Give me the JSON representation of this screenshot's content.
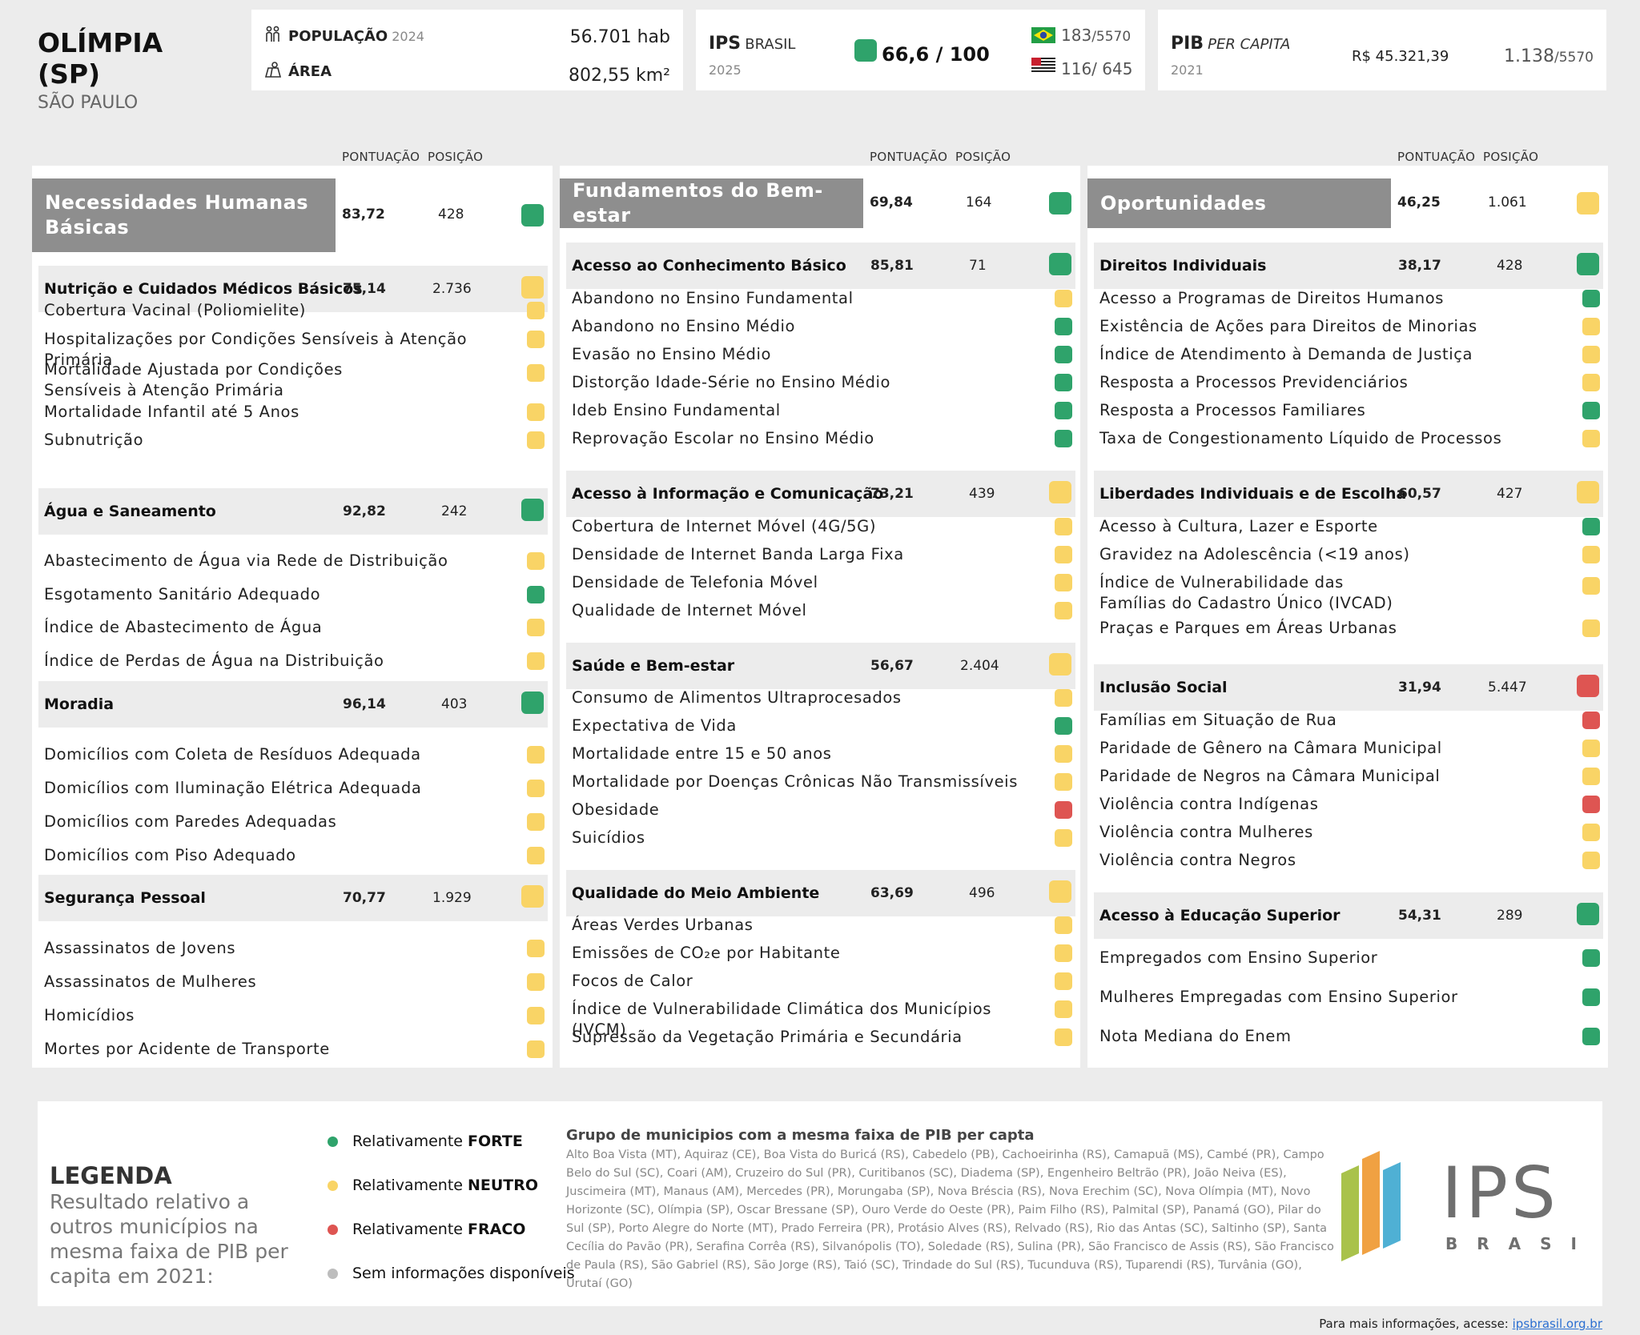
{
  "header": {
    "city_name": "OLÍMPIA (SP)",
    "state": "SÃO PAULO",
    "population_label": "POPULAÇÃO",
    "population_year": "2024",
    "population_value": "56.701 hab",
    "area_label": "ÁREA",
    "area_value": "802,55 km²",
    "ips_label": "IPS",
    "ips_sub": "BRASIL",
    "ips_year": "2025",
    "ips_score": "66,6 / 100",
    "ips_status": "g",
    "rank_brazil": "183",
    "rank_brazil_total": "/5570",
    "rank_state": "116/ 645",
    "pib_label": "PIB",
    "pib_sub": "PER CAPITA",
    "pib_year": "2021",
    "pib_value": "R$ 45.321,39",
    "pib_rank": "1.138",
    "pib_rank_total": "/5570"
  },
  "columns": {
    "score": "PONTUAÇÃO",
    "position": "POSIÇÃO"
  },
  "panels": [
    {
      "title": "Necessidades Humanas Básicas",
      "score": "83,72",
      "position": "428",
      "status": "g",
      "components": [
        {
          "label": "Nutrição e Cuidados Médicos Básicos",
          "score": "75,14",
          "position": "2.736",
          "status": "y",
          "indicators": [
            {
              "label": "Cobertura Vacinal (Poliomielite)",
              "status": "y"
            },
            {
              "label": "Hospitalizações por Condições Sensíveis à Atenção Primária",
              "status": "y"
            },
            {
              "label": "Mortalidade Ajustada por Condições Sensíveis à Atenção Primária",
              "status": "y"
            },
            {
              "label": "Mortalidade Infantil até 5 Anos",
              "status": "y"
            },
            {
              "label": "Subnutrição",
              "status": "y"
            }
          ]
        },
        {
          "label": "Água e Saneamento",
          "score": "92,82",
          "position": "242",
          "status": "g",
          "indicators": [
            {
              "label": "Abastecimento de Água via Rede de Distribuição",
              "status": "y"
            },
            {
              "label": "Esgotamento Sanitário Adequado",
              "status": "g"
            },
            {
              "label": "Índice de Abastecimento de Água",
              "status": "y"
            },
            {
              "label": "Índice de Perdas de Água na Distribuição",
              "status": "y"
            }
          ]
        },
        {
          "label": "Moradia",
          "score": "96,14",
          "position": "403",
          "status": "g",
          "indicators": [
            {
              "label": "Domicílios com Coleta de Resíduos Adequada",
              "status": "y"
            },
            {
              "label": "Domicílios com Iluminação Elétrica Adequada",
              "status": "y"
            },
            {
              "label": "Domicílios com Paredes Adequadas",
              "status": "y"
            },
            {
              "label": "Domicílios com Piso Adequado",
              "status": "y"
            }
          ]
        },
        {
          "label": "Segurança Pessoal",
          "score": "70,77",
          "position": "1.929",
          "status": "y",
          "indicators": [
            {
              "label": "Assassinatos de Jovens",
              "status": "y"
            },
            {
              "label": "Assassinatos de Mulheres",
              "status": "y"
            },
            {
              "label": "Homicídios",
              "status": "y"
            },
            {
              "label": "Mortes por Acidente de Transporte",
              "status": "y"
            }
          ]
        }
      ]
    },
    {
      "title": "Fundamentos do Bem-estar",
      "score": "69,84",
      "position": "164",
      "status": "g",
      "components": [
        {
          "label": "Acesso ao Conhecimento Básico",
          "score": "85,81",
          "position": "71",
          "status": "g",
          "indicators": [
            {
              "label": "Abandono no Ensino Fundamental",
              "status": "y"
            },
            {
              "label": "Abandono no Ensino Médio",
              "status": "g"
            },
            {
              "label": "Evasão no Ensino Médio",
              "status": "g"
            },
            {
              "label": "Distorção Idade-Série no Ensino Médio",
              "status": "g"
            },
            {
              "label": "Ideb Ensino Fundamental",
              "status": "g"
            },
            {
              "label": "Reprovação Escolar no Ensino Médio",
              "status": "g"
            }
          ]
        },
        {
          "label": "Acesso à Informação e Comunicação",
          "score": "73,21",
          "position": "439",
          "status": "y",
          "indicators": [
            {
              "label": "Cobertura de Internet Móvel (4G/5G)",
              "status": "y"
            },
            {
              "label": "Densidade de Internet Banda Larga Fixa",
              "status": "y"
            },
            {
              "label": "Densidade de Telefonia Móvel",
              "status": "y"
            },
            {
              "label": "Qualidade de Internet Móvel",
              "status": "y"
            }
          ]
        },
        {
          "label": "Saúde e Bem-estar",
          "score": "56,67",
          "position": "2.404",
          "status": "y",
          "indicators": [
            {
              "label": "Consumo de Alimentos Ultraprocesados",
              "status": "y"
            },
            {
              "label": "Expectativa de Vida",
              "status": "g"
            },
            {
              "label": "Mortalidade entre 15 e 50 anos",
              "status": "y"
            },
            {
              "label": "Mortalidade por Doenças Crônicas Não Transmissíveis",
              "status": "y"
            },
            {
              "label": "Obesidade",
              "status": "r"
            },
            {
              "label": "Suicídios",
              "status": "y"
            }
          ]
        },
        {
          "label": "Qualidade do Meio Ambiente",
          "score": "63,69",
          "position": "496",
          "status": "y",
          "indicators": [
            {
              "label": "Áreas Verdes Urbanas",
              "status": "y"
            },
            {
              "label": "Emissões de CO₂e por Habitante",
              "status": "y"
            },
            {
              "label": "Focos de Calor",
              "status": "y"
            },
            {
              "label": "Índice de Vulnerabilidade Climática dos Municípios (IVCM)",
              "status": "y"
            },
            {
              "label": "Supressão da Vegetação Primária e Secundária",
              "status": "y"
            }
          ]
        }
      ]
    },
    {
      "title": "Oportunidades",
      "score": "46,25",
      "position": "1.061",
      "status": "y",
      "components": [
        {
          "label": "Direitos Individuais",
          "score": "38,17",
          "position": "428",
          "status": "g",
          "indicators": [
            {
              "label": "Acesso a Programas de Direitos Humanos",
              "status": "g"
            },
            {
              "label": "Existência de Ações para Direitos de Minorias",
              "status": "y"
            },
            {
              "label": "Índice de Atendimento à Demanda de Justiça",
              "status": "y"
            },
            {
              "label": "Resposta a Processos Previdenciários",
              "status": "y"
            },
            {
              "label": "Resposta a Processos Familiares",
              "status": "g"
            },
            {
              "label": "Taxa de Congestionamento Líquido de Processos",
              "status": "y"
            }
          ]
        },
        {
          "label": "Liberdades Individuais e de Escolha",
          "score": "60,57",
          "position": "427",
          "status": "y",
          "indicators": [
            {
              "label": "Acesso à Cultura, Lazer e Esporte",
              "status": "g"
            },
            {
              "label": "Gravidez na Adolescência (<19 anos)",
              "status": "y"
            },
            {
              "label": "Índice de Vulnerabilidade das Famílias do Cadastro Único (IVCAD)",
              "status": "y"
            },
            {
              "label": "Praças e Parques em Áreas Urbanas",
              "status": "y"
            }
          ]
        },
        {
          "label": "Inclusão Social",
          "score": "31,94",
          "position": "5.447",
          "status": "r",
          "indicators": [
            {
              "label": "Famílias em Situação de Rua",
              "status": "r"
            },
            {
              "label": "Paridade de Gênero na Câmara Municipal",
              "status": "y"
            },
            {
              "label": "Paridade de Negros na Câmara Municipal",
              "status": "y"
            },
            {
              "label": "Violência contra Indígenas",
              "status": "r"
            },
            {
              "label": "Violência contra Mulheres",
              "status": "y"
            },
            {
              "label": "Violência contra Negros",
              "status": "y"
            }
          ]
        },
        {
          "label": "Acesso à Educação Superior",
          "score": "54,31",
          "position": "289",
          "status": "g",
          "indicators": [
            {
              "label": "Empregados com Ensino Superior",
              "status": "g"
            },
            {
              "label": "Mulheres Empregadas com Ensino Superior",
              "status": "g"
            },
            {
              "label": "Nota Mediana do Enem",
              "status": "g"
            }
          ]
        }
      ]
    }
  ],
  "legend": {
    "title": "LEGENDA",
    "description": "Resultado relativo a outros municípios na mesma faixa de PIB per capita em 2021:",
    "items": [
      {
        "prefix": "Relativamente ",
        "strong": "FORTE",
        "color": "#2fa36b"
      },
      {
        "prefix": "Relativamente ",
        "strong": "NEUTRO",
        "color": "#f9d466"
      },
      {
        "prefix": "Relativamente ",
        "strong": "FRACO",
        "color": "#de5552"
      },
      {
        "prefix": "Sem informações disponíveis",
        "strong": "",
        "color": "#bdbdbd"
      }
    ],
    "group_title": "Grupo de municipios com a mesma faixa de PIB per capta",
    "group_text": "Alto Boa Vista (MT), Aquiraz (CE), Boa Vista do Buricá (RS), Cabedelo (PB), Cachoeirinha (RS), Camapuã (MS), Cambé (PR), Campo Belo do Sul (SC), Coari (AM), Cruzeiro do Sul (PR), Curitibanos (SC), Diadema (SP), Engenheiro Beltrão (PR), João Neiva (ES), Juscimeira (MT), Manaus (AM), Mercedes (PR), Morungaba (SP), Nova Bréscia (RS), Nova Erechim (SC), Nova Olímpia (MT), Novo Horizonte (SC), Olímpia (SP), Oscar Bressane (SP), Ouro Verde do Oeste (PR), Paim Filho (RS), Palmital (SP), Panamá (GO), Pilar do Sul (SP), Porto Alegre do Norte (MT), Prado Ferreira (PR), Protásio Alves (RS), Relvado (RS), Rio das Antas (SC), Saltinho (SP), Santa Cecília do Pavão (PR), Serafina Corrêa (RS), Silvanópolis (TO), Soledade (RS), Sulina (PR), São Francisco de Assis (RS), São Francisco de Paula (RS), São Gabriel (RS), São Jorge (RS), Taió (SC), Trindade do Sul (RS), Tucunduva (RS), Tuparendi (RS), Turvânia (GO), Urutaí (GO)",
    "logo_text": "IPS",
    "logo_sub": "BRASIL"
  },
  "footer": {
    "text": "Para mais informações, acesse: ",
    "link": "ipsbrasil.org.br"
  }
}
